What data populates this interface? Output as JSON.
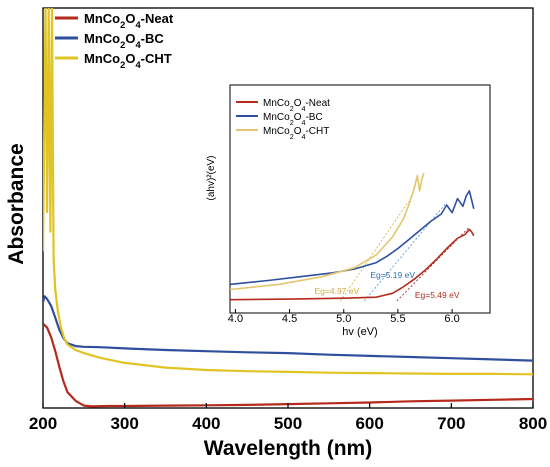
{
  "chart_data": [
    {
      "type": "line",
      "xlabel": "Wavelength (nm)",
      "ylabel": "Absorbance",
      "xlim": [
        200,
        800
      ],
      "ylim": [
        0,
        1
      ],
      "x_ticks": [
        "200",
        "300",
        "400",
        "500",
        "600",
        "700",
        "800"
      ],
      "y_ticks_shown": false,
      "grid": false,
      "legend": "top-left",
      "series": [
        {
          "name": "MnCo₂O₄-Neat",
          "color": "#b52a1c",
          "x": [
            200,
            205,
            210,
            215,
            220,
            225,
            230,
            240,
            250,
            260,
            280,
            300,
            350,
            400,
            450,
            500,
            550,
            600,
            650,
            700,
            750,
            800
          ],
          "y": [
            0.215,
            0.205,
            0.18,
            0.145,
            0.105,
            0.068,
            0.04,
            0.018,
            0.006,
            0.004,
            0.005,
            0.005,
            0.006,
            0.007,
            0.008,
            0.01,
            0.012,
            0.014,
            0.017,
            0.019,
            0.021,
            0.023
          ]
        },
        {
          "name": "MnCo₂O₄-BC",
          "color": "#2f4f9e",
          "x": [
            200,
            202,
            205,
            210,
            215,
            220,
            225,
            230,
            240,
            250,
            270,
            300,
            350,
            400,
            450,
            500,
            550,
            600,
            650,
            700,
            750,
            800
          ],
          "y": [
            0.27,
            0.285,
            0.278,
            0.26,
            0.23,
            0.2,
            0.178,
            0.165,
            0.158,
            0.156,
            0.155,
            0.152,
            0.148,
            0.145,
            0.142,
            0.14,
            0.136,
            0.133,
            0.13,
            0.127,
            0.124,
            0.121
          ]
        },
        {
          "name": "MnCo₂O₄-CHT",
          "color": "#e0c423",
          "x": [
            200,
            203,
            205,
            207,
            209,
            211,
            213,
            215,
            218,
            222,
            226,
            230,
            240,
            250,
            270,
            300,
            350,
            400,
            450,
            500,
            550,
            600,
            650,
            700,
            750,
            800
          ],
          "y": [
            0.4,
            1.02,
            0.5,
            1.02,
            0.45,
            1.02,
            0.38,
            0.3,
            0.25,
            0.205,
            0.178,
            0.162,
            0.148,
            0.14,
            0.128,
            0.115,
            0.103,
            0.097,
            0.094,
            0.092,
            0.09,
            0.089,
            0.088,
            0.087,
            0.087,
            0.086
          ]
        }
      ],
      "label_colors": {
        "axis": "#000000"
      }
    },
    {
      "type": "line",
      "xlabel": "hv (eV)",
      "ylabel": "(ahv)²(eV)",
      "xlim": [
        3.95,
        6.35
      ],
      "ylim": [
        0,
        1
      ],
      "x_ticks": [
        "4.0",
        "4.5",
        "5.0",
        "5.5",
        "6.0"
      ],
      "legend": "top-left",
      "series": [
        {
          "name": "MnCo₂O₄-Neat",
          "color": "#b52a1c",
          "x": [
            3.95,
            4.5,
            5.0,
            5.3,
            5.45,
            5.55,
            5.65,
            5.75,
            5.85,
            5.95,
            6.05,
            6.12,
            6.16,
            6.18,
            6.2
          ],
          "y": [
            0.01,
            0.015,
            0.022,
            0.03,
            0.06,
            0.11,
            0.17,
            0.24,
            0.32,
            0.41,
            0.49,
            0.52,
            0.56,
            0.54,
            0.51
          ]
        },
        {
          "name": "MnCo₂O₄-BC",
          "color": "#2f4f9e",
          "x": [
            3.95,
            4.3,
            4.6,
            4.9,
            5.1,
            5.3,
            5.4,
            5.5,
            5.6,
            5.7,
            5.8,
            5.9,
            5.95,
            6.0,
            6.05,
            6.1,
            6.13,
            6.16,
            6.2
          ],
          "y": [
            0.13,
            0.16,
            0.19,
            0.22,
            0.25,
            0.3,
            0.35,
            0.41,
            0.48,
            0.55,
            0.62,
            0.68,
            0.75,
            0.69,
            0.8,
            0.74,
            0.82,
            0.86,
            0.72
          ]
        },
        {
          "name": "MnCo₂O₄-CHT",
          "color": "#e3c66d",
          "x": [
            3.95,
            4.4,
            4.8,
            5.1,
            5.3,
            5.45,
            5.55,
            5.6,
            5.65,
            5.68,
            5.7,
            5.72,
            5.74
          ],
          "y": [
            0.09,
            0.13,
            0.19,
            0.26,
            0.36,
            0.5,
            0.64,
            0.75,
            0.88,
            0.98,
            0.86,
            0.95,
            1.0
          ]
        }
      ],
      "annotations": [
        {
          "text": "Eg=4.97 eV",
          "x": 4.97,
          "color": "#d4a93a"
        },
        {
          "text": "Eg=5.19 eV",
          "x": 5.19,
          "color": "#2f6fb8"
        },
        {
          "text": "Eg=5.49 eV",
          "x": 5.49,
          "color": "#b52a1c"
        }
      ],
      "tangent_lines": [
        {
          "color": "#d4a93a",
          "x": [
            4.97,
            5.6
          ],
          "y": [
            0.0,
            0.78
          ]
        },
        {
          "color": "#4a90d9",
          "x": [
            5.19,
            5.95
          ],
          "y": [
            0.0,
            0.77
          ]
        },
        {
          "color": "#8a2010",
          "x": [
            5.49,
            6.15
          ],
          "y": [
            0.0,
            0.57
          ]
        }
      ]
    }
  ]
}
